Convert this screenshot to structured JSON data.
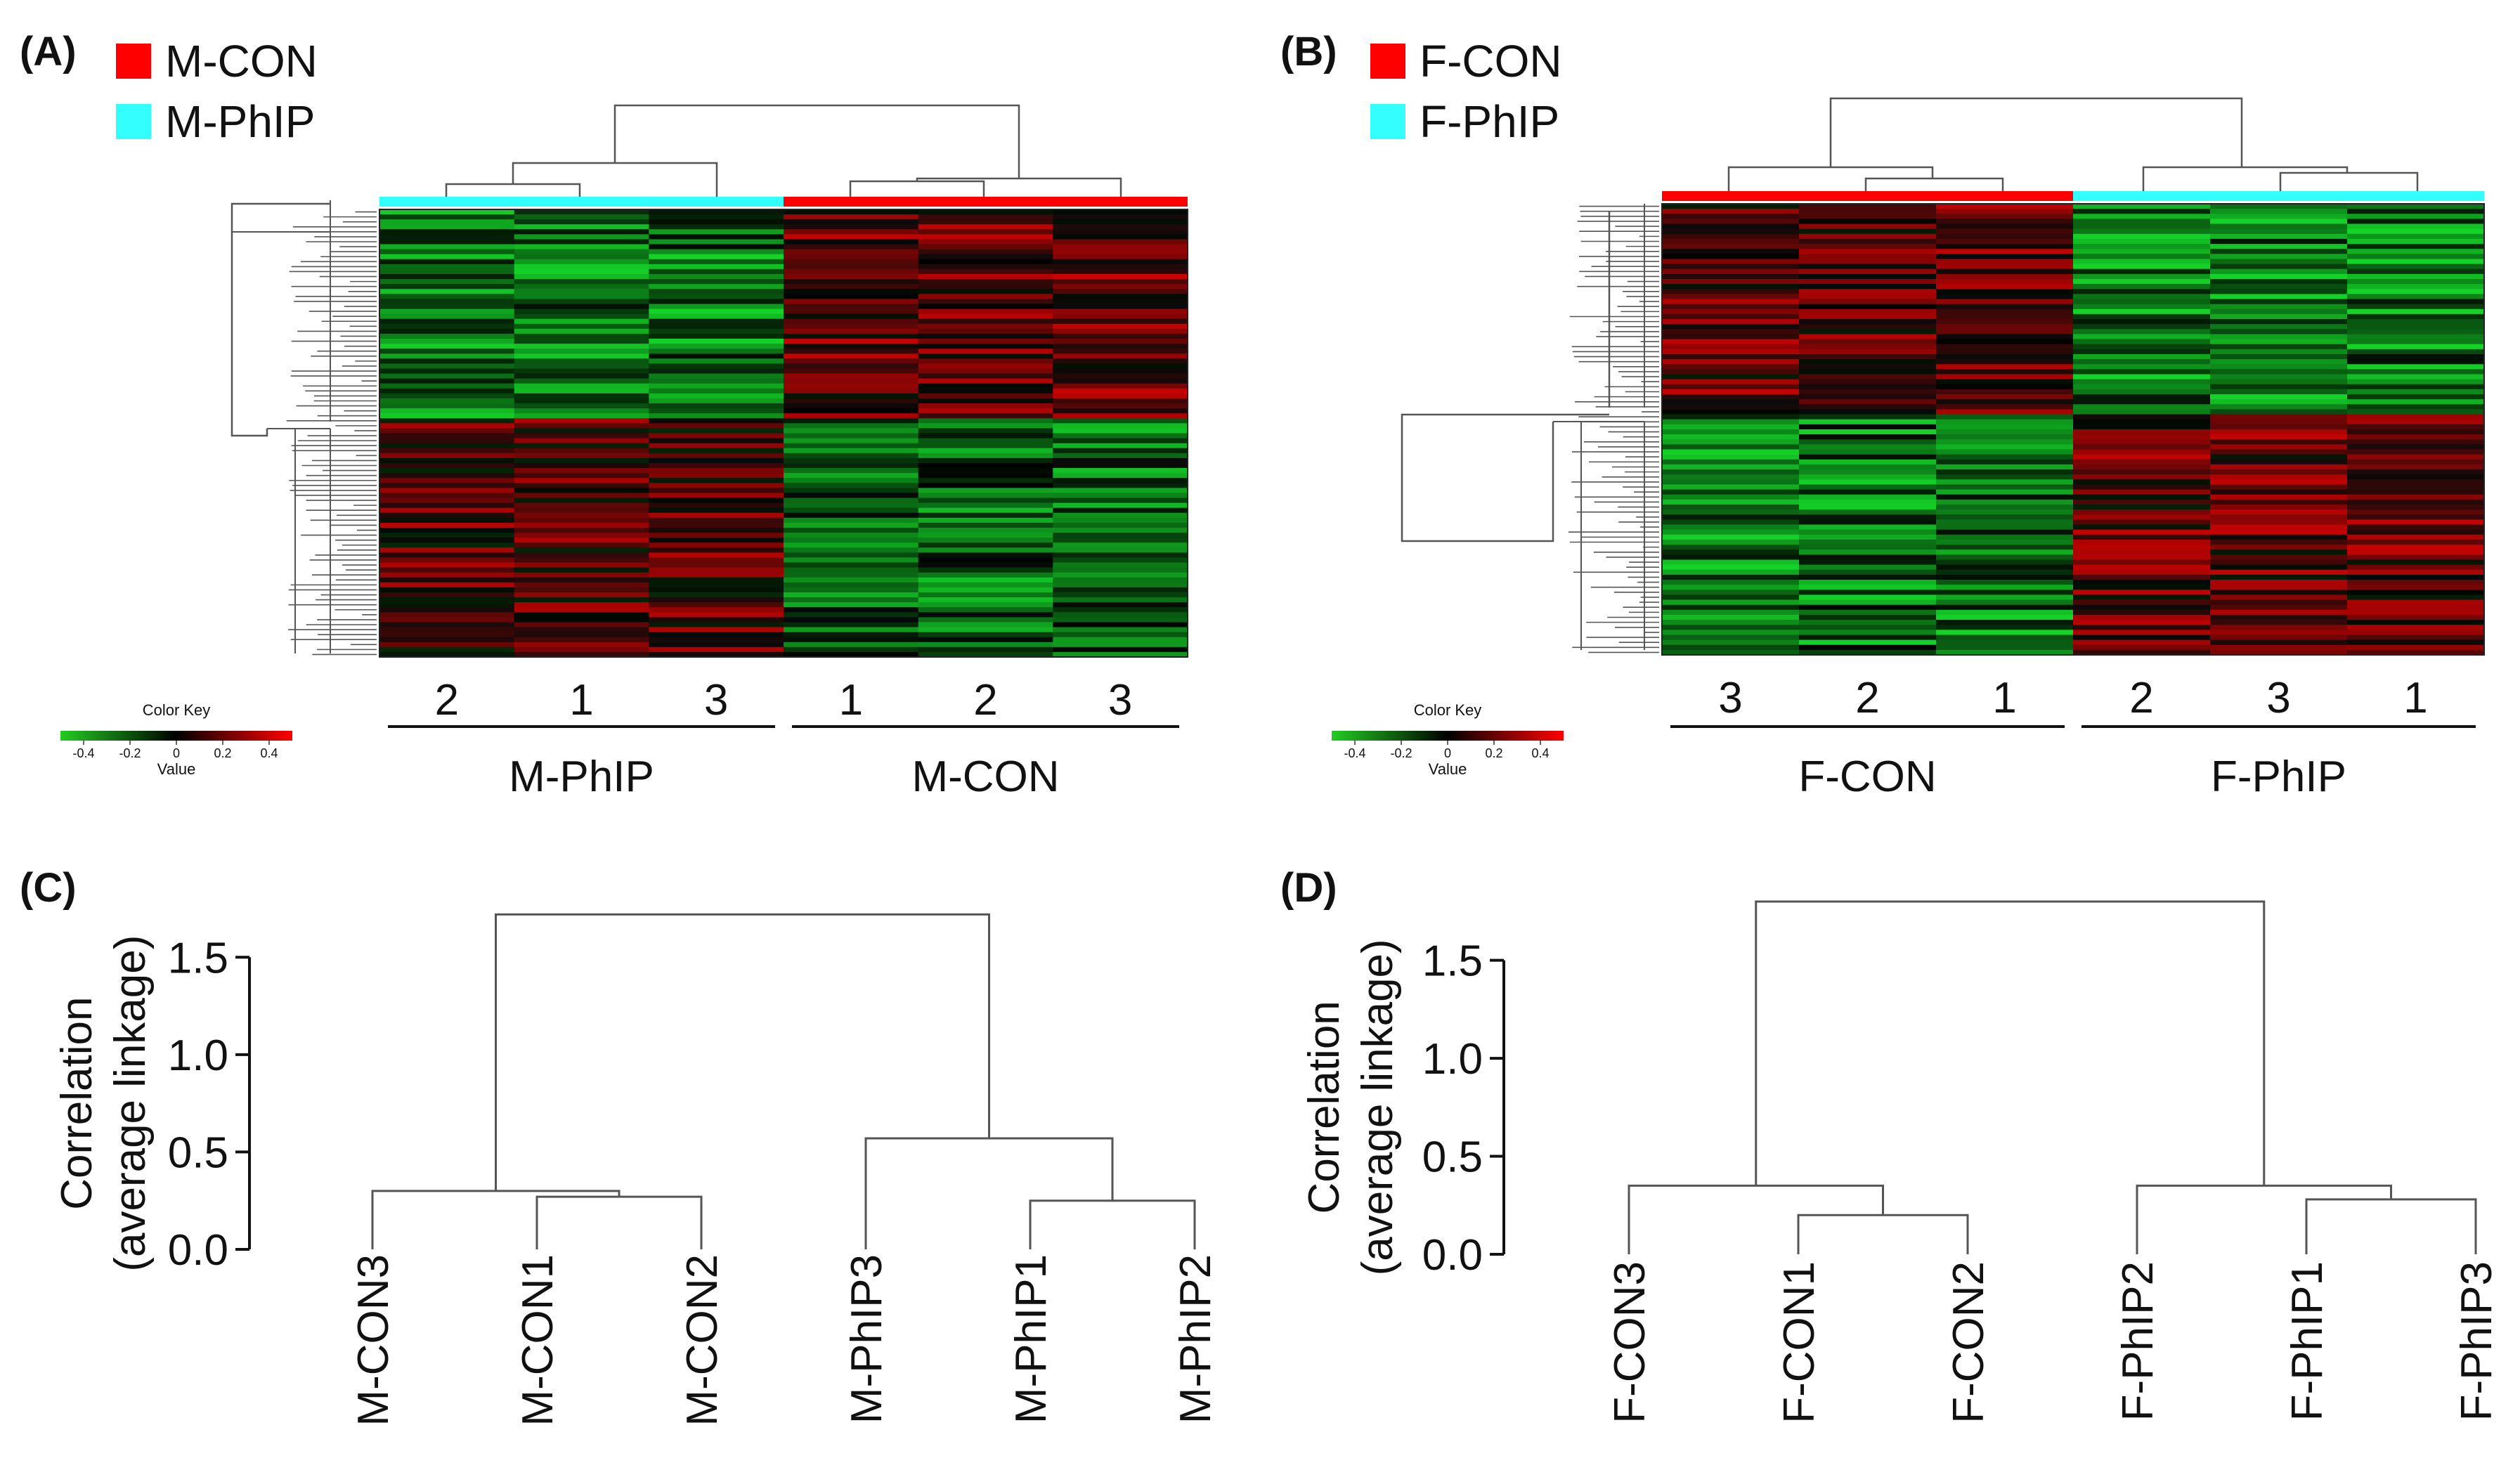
{
  "panels": {
    "A": {
      "label": "(A)",
      "legend": [
        {
          "name": "M-CON",
          "color": "#ff0000"
        },
        {
          "name": "M-PhIP",
          "color": "#33ffff"
        }
      ]
    },
    "B": {
      "label": "(B)",
      "legend": [
        {
          "name": "F-CON",
          "color": "#ff0000"
        },
        {
          "name": "F-PhIP",
          "color": "#33ffff"
        }
      ]
    },
    "C": {
      "label": "(C)"
    },
    "D": {
      "label": "(D)"
    }
  },
  "colors": {
    "group_con": "#ff0000",
    "group_phip": "#33ffff",
    "low": "#22cc22",
    "mid": "#000000",
    "high": "#ff0000",
    "line": "#555555"
  },
  "chart_data": [
    {
      "id": "A",
      "type": "heatmap",
      "columns": [
        "2",
        "1",
        "3",
        "1",
        "2",
        "3"
      ],
      "groups": [
        {
          "name": "M-PhIP",
          "columns": [
            0,
            1,
            2
          ],
          "color": "#33ffff"
        },
        {
          "name": "M-CON",
          "columns": [
            3,
            4,
            5
          ],
          "color": "#ff0000"
        }
      ],
      "color_key": {
        "title": "Color Key",
        "xlabel": "Value",
        "ticks": [
          "-0.4",
          "-0.2",
          "0",
          "0.2",
          "0.4"
        ],
        "range": [
          -0.5,
          0.5
        ]
      },
      "row_count": 90,
      "pattern": "upper block: PhIP green / CON red; lower block: PhIP red / CON green"
    },
    {
      "id": "B",
      "type": "heatmap",
      "columns": [
        "3",
        "2",
        "1",
        "2",
        "3",
        "1"
      ],
      "groups": [
        {
          "name": "F-CON",
          "columns": [
            0,
            1,
            2
          ],
          "color": "#ff0000"
        },
        {
          "name": "F-PhIP",
          "columns": [
            3,
            4,
            5
          ],
          "color": "#33ffff"
        }
      ],
      "color_key": {
        "title": "Color Key",
        "xlabel": "Value",
        "ticks": [
          "-0.4",
          "-0.2",
          "0",
          "0.2",
          "0.4"
        ],
        "range": [
          -0.5,
          0.5
        ]
      },
      "row_count": 90,
      "pattern": "upper block: CON red / PhIP green; lower block: CON green / PhIP red"
    },
    {
      "id": "C",
      "type": "dendrogram",
      "ylabel": "Correlation\n(average linkage)",
      "yticks": [
        "0.0",
        "0.5",
        "1.0",
        "1.5"
      ],
      "ylim": [
        0,
        1.75
      ],
      "leaves": [
        "M-CON3",
        "M-CON1",
        "M-CON2",
        "M-PhIP3",
        "M-PhIP1",
        "M-PhIP2"
      ],
      "merges": [
        {
          "a": "M-CON1",
          "b": "M-CON2",
          "height": 0.27
        },
        {
          "a": "M-CON3",
          "b": "(M-CON1,M-CON2)",
          "height": 0.3
        },
        {
          "a": "M-PhIP1",
          "b": "M-PhIP2",
          "height": 0.25
        },
        {
          "a": "M-PhIP3",
          "b": "(M-PhIP1,M-PhIP2)",
          "height": 0.57
        },
        {
          "a": "CON cluster",
          "b": "PhIP cluster",
          "height": 1.72
        }
      ]
    },
    {
      "id": "D",
      "type": "dendrogram",
      "ylabel": "Correlation\n(average linkage)",
      "yticks": [
        "0.0",
        "0.5",
        "1.0",
        "1.5"
      ],
      "ylim": [
        0,
        1.8
      ],
      "leaves": [
        "F-CON3",
        "F-CON1",
        "F-CON2",
        "F-PhIP2",
        "F-PhIP1",
        "F-PhIP3"
      ],
      "merges": [
        {
          "a": "F-CON1",
          "b": "F-CON2",
          "height": 0.2
        },
        {
          "a": "F-CON3",
          "b": "(F-CON1,F-CON2)",
          "height": 0.35
        },
        {
          "a": "F-PhIP1",
          "b": "F-PhIP3",
          "height": 0.28
        },
        {
          "a": "F-PhIP2",
          "b": "(F-PhIP1,F-PhIP3)",
          "height": 0.35
        },
        {
          "a": "CON cluster",
          "b": "PhIP cluster",
          "height": 1.8
        }
      ]
    }
  ]
}
